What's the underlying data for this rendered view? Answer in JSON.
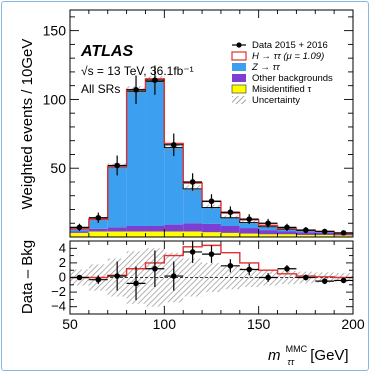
{
  "chart_data": {
    "type": "bar",
    "xlabel_main": "m",
    "xlabel_sup": "MMC",
    "xlabel_sub": "ττ",
    "xlabel_unit": "[GeV]",
    "x_ticks": [
      "50",
      "100",
      "150",
      "200"
    ],
    "upper": {
      "ylabel": "Weighted events / 10GeV",
      "y_ticks": [
        "50",
        "100",
        "150"
      ],
      "ylim": [
        0,
        165
      ],
      "atlas_label": "ATLAS",
      "energy_label": "√s = 13 TeV, 36.1fb⁻¹",
      "region_label": "All SRs",
      "bin_edges": [
        50,
        60,
        70,
        80,
        90,
        100,
        110,
        120,
        130,
        140,
        150,
        160,
        170,
        180,
        190,
        200
      ],
      "stack": {
        "misidentified": [
          3,
          4,
          4,
          4,
          4,
          4,
          4,
          3.5,
          3,
          2.5,
          2,
          2,
          1.5,
          1.5,
          1.2
        ],
        "other": [
          1,
          2,
          3,
          4,
          4,
          5,
          6,
          6,
          5,
          4,
          3,
          2,
          2,
          1.5,
          1
        ],
        "ztautau": [
          2,
          7,
          44,
          98,
          105,
          56,
          25,
          12,
          6,
          4,
          2.5,
          1.8,
          1.3,
          1,
          0.5
        ],
        "higgs": [
          0,
          0,
          0.3,
          1.2,
          2,
          3,
          4.2,
          4.4,
          3.4,
          2,
          1,
          0.5,
          0.2,
          0.1,
          0
        ]
      },
      "data_x": [
        55,
        65,
        75,
        85,
        95,
        105,
        115,
        125,
        135,
        145,
        155,
        165,
        175,
        185,
        195
      ],
      "data_y": [
        7,
        14,
        52,
        107,
        114,
        67,
        40,
        26,
        18,
        13,
        10,
        7,
        5,
        4,
        3
      ]
    },
    "lower": {
      "ylabel": "Data – Bkg",
      "y_ticks": [
        "−4",
        "−2",
        "0",
        "2",
        "4"
      ],
      "ylim": [
        -5,
        5
      ],
      "higgs_line": [
        0,
        0,
        0.3,
        1.2,
        2,
        3,
        4.2,
        4.4,
        3.4,
        2,
        1,
        0.5,
        0.2,
        0.1,
        0
      ],
      "unc": [
        1.1,
        1.8,
        2.6,
        3.6,
        4.0,
        3.4,
        2.6,
        2.0,
        1.6,
        1.3,
        1.1,
        0.9,
        0.8,
        0.7,
        0.6
      ],
      "data_x": [
        55,
        65,
        75,
        85,
        95,
        105,
        115,
        125,
        135,
        145,
        155,
        165,
        175,
        185,
        195
      ],
      "data_y": [
        0,
        -0.3,
        0.2,
        -0.8,
        1.2,
        0.2,
        3.5,
        3.2,
        1.6,
        1.1,
        0,
        1.2,
        0,
        -0.5,
        -0.4
      ],
      "data_err": [
        0.3,
        0.6,
        2.0,
        2.3,
        2.5,
        2.0,
        1.5,
        1.2,
        0.9,
        0.8,
        0.6,
        0.5,
        0.4,
        0.4,
        0.3
      ]
    },
    "legend": [
      {
        "key": "data",
        "label": "Data 2015 + 2016"
      },
      {
        "key": "higgs",
        "label": "H → ττ (μ = 1.09)"
      },
      {
        "key": "ztautau",
        "label": "Z → ττ"
      },
      {
        "key": "other",
        "label": "Other backgrounds"
      },
      {
        "key": "misid",
        "label": "Misidentified τ"
      },
      {
        "key": "unc",
        "label": "Uncertainty"
      }
    ],
    "colors": {
      "ztautau": "#3d9ff0",
      "other": "#7c3fd1",
      "misid": "#ffff00",
      "higgs": "#e03030",
      "data": "#000000",
      "unc": "#9a9a9a"
    }
  }
}
